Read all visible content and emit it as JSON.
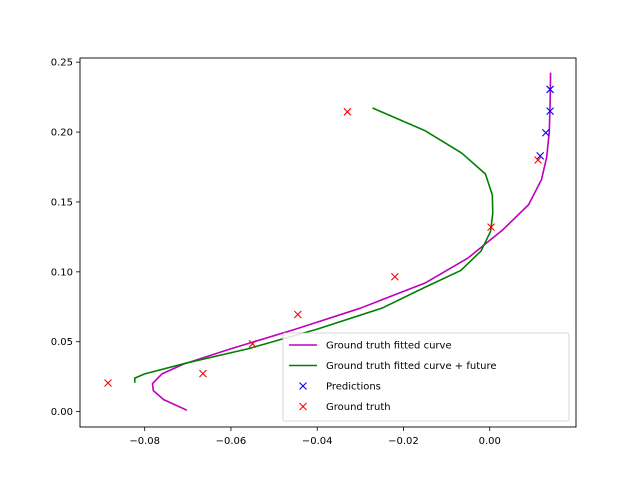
{
  "chart_data": {
    "type": "line",
    "xlim": [
      -0.095,
      0.02
    ],
    "ylim": [
      -0.011,
      0.253
    ],
    "x_ticks": [
      {
        "value": -0.08,
        "label": "−0.08"
      },
      {
        "value": -0.06,
        "label": "−0.06"
      },
      {
        "value": -0.04,
        "label": "−0.04"
      },
      {
        "value": -0.02,
        "label": "−0.02"
      },
      {
        "value": 0.0,
        "label": "0.00"
      }
    ],
    "y_ticks": [
      {
        "value": 0.0,
        "label": "0.00"
      },
      {
        "value": 0.05,
        "label": "0.05"
      },
      {
        "value": 0.1,
        "label": "0.10"
      },
      {
        "value": 0.15,
        "label": "0.15"
      },
      {
        "value": 0.2,
        "label": "0.20"
      },
      {
        "value": 0.25,
        "label": "0.25"
      }
    ],
    "grid": false,
    "legend_position": "lower-right",
    "series": [
      {
        "name": "Ground truth fitted curve",
        "kind": "line",
        "color": "#bf00bf",
        "points": [
          [
            -0.0704,
            0.0012
          ],
          [
            -0.0756,
            0.0086
          ],
          [
            -0.078,
            0.015
          ],
          [
            -0.0782,
            0.02
          ],
          [
            -0.076,
            0.027
          ],
          [
            -0.071,
            0.034
          ],
          [
            -0.06,
            0.045
          ],
          [
            -0.045,
            0.059
          ],
          [
            -0.03,
            0.074
          ],
          [
            -0.015,
            0.092
          ],
          [
            -0.005,
            0.11
          ],
          [
            0.003,
            0.13
          ],
          [
            0.009,
            0.148
          ],
          [
            0.012,
            0.166
          ],
          [
            0.0132,
            0.182
          ],
          [
            0.0138,
            0.2
          ],
          [
            0.014,
            0.22
          ],
          [
            0.0141,
            0.242
          ]
        ]
      },
      {
        "name": "Ground truth fitted curve + future",
        "kind": "line",
        "color": "#008000",
        "points": [
          [
            -0.0823,
            0.0212
          ],
          [
            -0.0823,
            0.024
          ],
          [
            -0.08,
            0.027
          ],
          [
            -0.07,
            0.035
          ],
          [
            -0.056,
            0.045
          ],
          [
            -0.04,
            0.059
          ],
          [
            -0.025,
            0.074
          ],
          [
            -0.015,
            0.089
          ],
          [
            -0.0067,
            0.101
          ],
          [
            -0.002,
            0.115
          ],
          [
            0.0002,
            0.129
          ],
          [
            0.0007,
            0.142
          ],
          [
            0.0006,
            0.155
          ],
          [
            -0.001,
            0.17
          ],
          [
            -0.0065,
            0.185
          ],
          [
            -0.015,
            0.201
          ],
          [
            -0.027,
            0.217
          ]
        ]
      },
      {
        "name": "Predictions",
        "kind": "marker",
        "color": "#0000ff",
        "points": [
          [
            0.0117,
            0.183
          ],
          [
            0.013,
            0.1995
          ],
          [
            0.014,
            0.215
          ],
          [
            0.014,
            0.2305
          ]
        ]
      },
      {
        "name": "Ground truth",
        "kind": "marker",
        "color": "#ff0000",
        "points": [
          [
            -0.0885,
            0.0205
          ],
          [
            -0.0665,
            0.0272
          ],
          [
            -0.055,
            0.0485
          ],
          [
            -0.0445,
            0.0695
          ],
          [
            -0.022,
            0.0965
          ],
          [
            0.0003,
            0.132
          ],
          [
            0.0112,
            0.18
          ],
          [
            -0.033,
            0.2145
          ]
        ]
      }
    ]
  }
}
